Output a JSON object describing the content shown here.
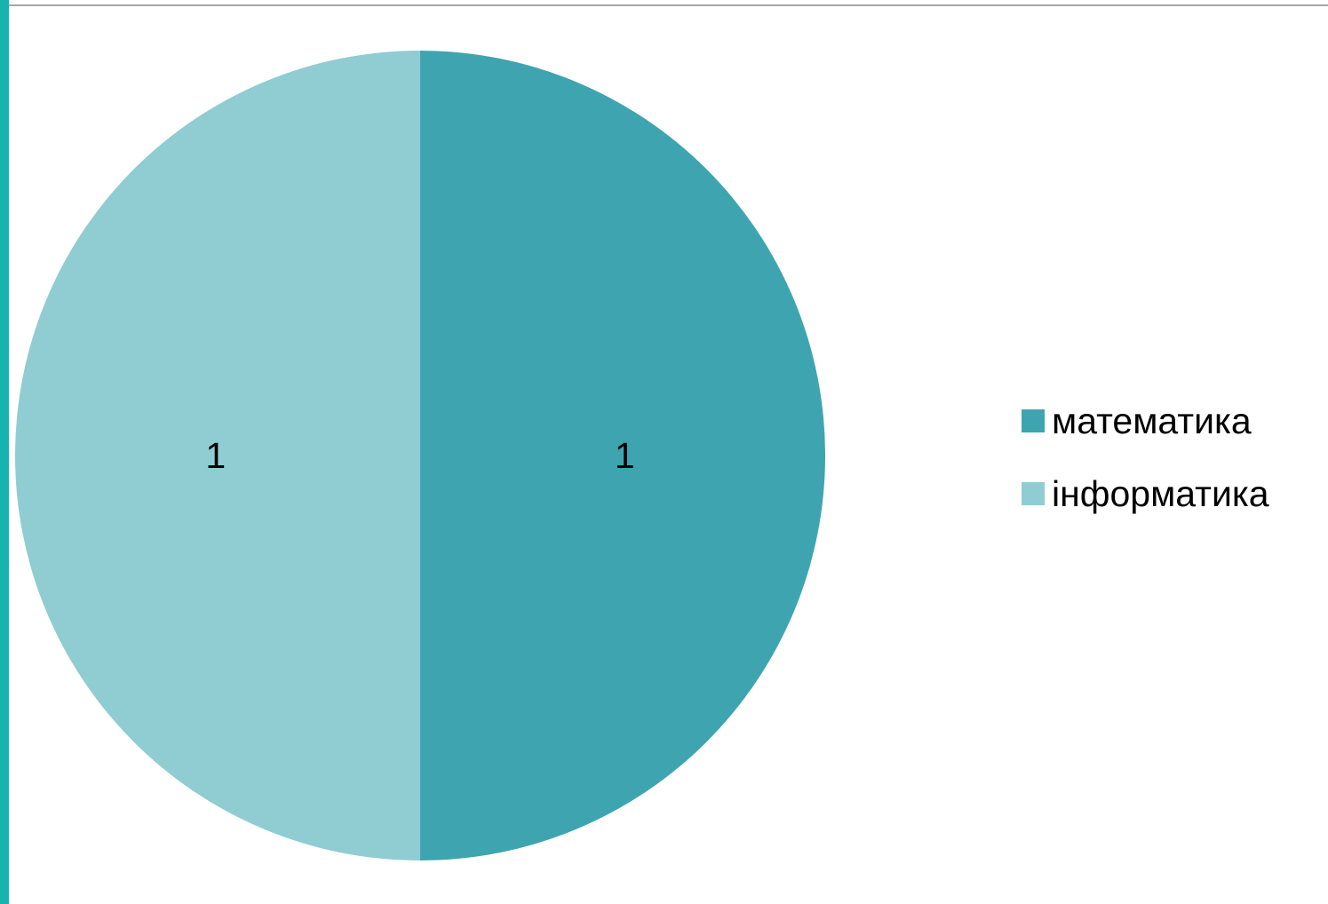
{
  "chart_data": {
    "type": "pie",
    "categories": [
      "математика",
      "інформатика"
    ],
    "values": [
      1,
      1
    ],
    "data_labels": [
      "1",
      "1"
    ],
    "colors": [
      "#3ea5b0",
      "#8fcdd2"
    ],
    "legend_position": "right",
    "start_angle_deg": 0,
    "direction": "clockwise"
  },
  "frame": {
    "accent_color": "#17b3b1",
    "rule_color": "#a6a6a6"
  }
}
